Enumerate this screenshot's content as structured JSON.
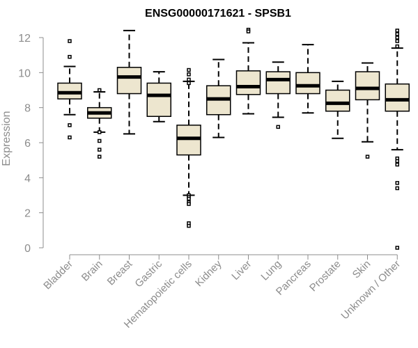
{
  "colors": {
    "box_fill": "#ede6cf",
    "box_stroke": "#000000",
    "axis": "#8c8c8c",
    "text": "#8c8c8c",
    "title": "#000000"
  },
  "chart_data": {
    "type": "boxplot",
    "title": "ENSG00000171621 - SPSB1",
    "xlabel": "",
    "ylabel": "Expression",
    "ylim": [
      0,
      12
    ],
    "yticks": [
      0,
      2,
      4,
      6,
      8,
      10,
      12
    ],
    "grid": false,
    "categories": [
      "Bladder",
      "Brain",
      "Breast",
      "Gastric",
      "Hematopoietic cells",
      "Kidney",
      "Liver",
      "Lung",
      "Pancreas",
      "Prostate",
      "Skin",
      "Unknown / Other"
    ],
    "boxes": [
      {
        "whisker_low": 7.6,
        "q1": 8.5,
        "median": 8.85,
        "q3": 9.4,
        "whisker_high": 10.35,
        "outliers": [
          11.8,
          10.9,
          7.0,
          6.3
        ]
      },
      {
        "whisker_low": 6.6,
        "q1": 7.4,
        "median": 7.7,
        "q3": 8.0,
        "whisker_high": 8.9,
        "outliers": [
          9.0,
          6.6,
          6.1,
          5.6,
          5.2
        ]
      },
      {
        "whisker_low": 6.5,
        "q1": 8.8,
        "median": 9.75,
        "q3": 10.3,
        "whisker_high": 12.4,
        "outliers": []
      },
      {
        "whisker_low": 7.2,
        "q1": 7.5,
        "median": 8.7,
        "q3": 9.4,
        "whisker_high": 10.05,
        "outliers": []
      },
      {
        "whisker_low": 3.0,
        "q1": 5.3,
        "median": 6.25,
        "q3": 7.0,
        "whisker_high": 9.5,
        "outliers": [
          10.15,
          9.9,
          9.6,
          9.4,
          3.0,
          2.9,
          2.8,
          2.6,
          2.5,
          1.4,
          1.25
        ]
      },
      {
        "whisker_low": 6.3,
        "q1": 7.6,
        "median": 8.5,
        "q3": 9.25,
        "whisker_high": 10.75,
        "outliers": []
      },
      {
        "whisker_low": 7.65,
        "q1": 8.75,
        "median": 9.2,
        "q3": 10.1,
        "whisker_high": 11.7,
        "outliers": [
          12.45,
          12.35
        ]
      },
      {
        "whisker_low": 7.45,
        "q1": 8.8,
        "median": 9.6,
        "q3": 10.05,
        "whisker_high": 10.6,
        "outliers": [
          6.9
        ]
      },
      {
        "whisker_low": 7.7,
        "q1": 8.8,
        "median": 9.25,
        "q3": 10.0,
        "whisker_high": 11.6,
        "outliers": []
      },
      {
        "whisker_low": 6.25,
        "q1": 7.8,
        "median": 8.25,
        "q3": 9.0,
        "whisker_high": 9.5,
        "outliers": []
      },
      {
        "whisker_low": 6.05,
        "q1": 8.45,
        "median": 9.1,
        "q3": 10.05,
        "whisker_high": 10.55,
        "outliers": [
          5.2
        ]
      },
      {
        "whisker_low": 5.6,
        "q1": 7.8,
        "median": 8.45,
        "q3": 9.35,
        "whisker_high": 11.4,
        "outliers": [
          12.4,
          12.2,
          12.0,
          11.8,
          11.5,
          5.1,
          4.95,
          4.75,
          3.7,
          3.4,
          0.0
        ]
      }
    ]
  }
}
